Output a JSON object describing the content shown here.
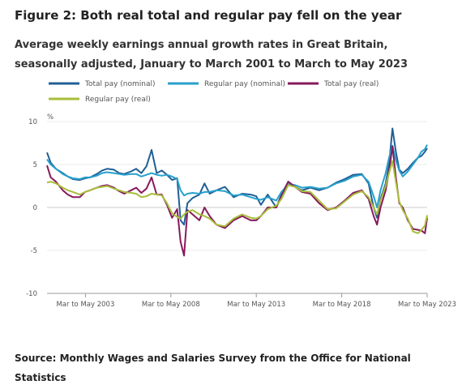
{
  "figure": {
    "title": "Figure 2: Both real total and regular pay fell on the year",
    "subtitle": "Average weekly earnings annual growth rates in Great Britain, seasonally adjusted, January to March 2001 to March to May 2023",
    "source": "Source: Monthly Wages and Salaries Survey from the Office for National Statistics"
  },
  "chart_data": {
    "type": "line",
    "title": "Figure 2: Both real total and regular pay fell on the year",
    "subtitle": "Average weekly earnings annual growth rates in Great Britain, seasonally adjusted, January to March 2001 to March to May 2023",
    "ylabel": "%",
    "ylim": [
      -10,
      10
    ],
    "yticks": [
      10,
      5,
      0,
      -5,
      -10
    ],
    "xlim": [
      2001.08,
      2023.33
    ],
    "xticks": [
      {
        "x": 2003.33,
        "label": "Mar to May 2003"
      },
      {
        "x": 2008.33,
        "label": "Mar to May 2008"
      },
      {
        "x": 2013.33,
        "label": "Mar to May 2013"
      },
      {
        "x": 2018.33,
        "label": "Mar to May 2018"
      },
      {
        "x": 2023.33,
        "label": "Mar to May 2023"
      }
    ],
    "grid": "horizontal",
    "legend": "top",
    "series": [
      {
        "name": "Total pay (nominal)",
        "color": "#206095",
        "points": [
          [
            2001.08,
            6.4
          ],
          [
            2001.3,
            5.2
          ],
          [
            2001.6,
            4.5
          ],
          [
            2002.0,
            4.0
          ],
          [
            2002.3,
            3.6
          ],
          [
            2002.6,
            3.3
          ],
          [
            2003.0,
            3.2
          ],
          [
            2003.3,
            3.4
          ],
          [
            2003.6,
            3.5
          ],
          [
            2004.0,
            3.9
          ],
          [
            2004.3,
            4.3
          ],
          [
            2004.6,
            4.5
          ],
          [
            2005.0,
            4.4
          ],
          [
            2005.3,
            4.0
          ],
          [
            2005.6,
            3.9
          ],
          [
            2006.0,
            4.2
          ],
          [
            2006.3,
            4.5
          ],
          [
            2006.6,
            4.0
          ],
          [
            2006.9,
            4.8
          ],
          [
            2007.2,
            6.7
          ],
          [
            2007.5,
            4.0
          ],
          [
            2007.8,
            4.3
          ],
          [
            2008.1,
            3.8
          ],
          [
            2008.4,
            3.2
          ],
          [
            2008.7,
            3.4
          ],
          [
            2008.9,
            -1.5
          ],
          [
            2009.1,
            -2.0
          ],
          [
            2009.3,
            0.5
          ],
          [
            2009.6,
            1.1
          ],
          [
            2010.0,
            1.5
          ],
          [
            2010.3,
            2.8
          ],
          [
            2010.6,
            1.6
          ],
          [
            2011.0,
            2.0
          ],
          [
            2011.5,
            2.4
          ],
          [
            2012.0,
            1.2
          ],
          [
            2012.5,
            1.6
          ],
          [
            2013.0,
            1.5
          ],
          [
            2013.33,
            1.3
          ],
          [
            2013.6,
            0.3
          ],
          [
            2014.0,
            1.5
          ],
          [
            2014.5,
            0.0
          ],
          [
            2014.8,
            1.5
          ],
          [
            2015.2,
            3.0
          ],
          [
            2015.6,
            2.4
          ],
          [
            2016.0,
            2.0
          ],
          [
            2016.5,
            2.3
          ],
          [
            2017.0,
            2.0
          ],
          [
            2017.5,
            2.3
          ],
          [
            2018.0,
            2.9
          ],
          [
            2018.5,
            3.3
          ],
          [
            2019.0,
            3.8
          ],
          [
            2019.5,
            3.9
          ],
          [
            2019.9,
            2.8
          ],
          [
            2020.2,
            0.0
          ],
          [
            2020.4,
            -1.2
          ],
          [
            2020.6,
            1.0
          ],
          [
            2020.9,
            2.8
          ],
          [
            2021.1,
            5.0
          ],
          [
            2021.3,
            9.2
          ],
          [
            2021.5,
            6.5
          ],
          [
            2021.7,
            4.4
          ],
          [
            2021.9,
            4.0
          ],
          [
            2022.2,
            4.5
          ],
          [
            2022.5,
            5.2
          ],
          [
            2022.8,
            5.8
          ],
          [
            2023.0,
            6.0
          ],
          [
            2023.2,
            6.5
          ],
          [
            2023.33,
            6.9
          ]
        ]
      },
      {
        "name": "Regular pay (nominal)",
        "color": "#27a0cc",
        "points": [
          [
            2001.08,
            5.6
          ],
          [
            2001.3,
            5.0
          ],
          [
            2001.6,
            4.5
          ],
          [
            2002.0,
            3.9
          ],
          [
            2002.3,
            3.6
          ],
          [
            2002.6,
            3.4
          ],
          [
            2003.0,
            3.3
          ],
          [
            2003.3,
            3.5
          ],
          [
            2003.6,
            3.5
          ],
          [
            2004.0,
            3.7
          ],
          [
            2004.3,
            4.0
          ],
          [
            2004.6,
            4.1
          ],
          [
            2005.0,
            4.0
          ],
          [
            2005.3,
            3.9
          ],
          [
            2005.6,
            3.8
          ],
          [
            2006.0,
            3.9
          ],
          [
            2006.3,
            3.9
          ],
          [
            2006.6,
            3.6
          ],
          [
            2006.9,
            3.8
          ],
          [
            2007.2,
            4.0
          ],
          [
            2007.5,
            3.8
          ],
          [
            2007.8,
            3.7
          ],
          [
            2008.1,
            3.8
          ],
          [
            2008.4,
            3.6
          ],
          [
            2008.7,
            3.3
          ],
          [
            2008.9,
            2.0
          ],
          [
            2009.1,
            1.4
          ],
          [
            2009.3,
            1.6
          ],
          [
            2009.6,
            1.7
          ],
          [
            2010.0,
            1.6
          ],
          [
            2010.3,
            1.8
          ],
          [
            2010.6,
            1.8
          ],
          [
            2011.0,
            2.0
          ],
          [
            2011.5,
            1.9
          ],
          [
            2012.0,
            1.4
          ],
          [
            2012.5,
            1.5
          ],
          [
            2013.0,
            1.2
          ],
          [
            2013.33,
            1.0
          ],
          [
            2013.6,
            0.9
          ],
          [
            2014.0,
            1.2
          ],
          [
            2014.5,
            0.8
          ],
          [
            2014.8,
            1.8
          ],
          [
            2015.2,
            2.7
          ],
          [
            2015.6,
            2.6
          ],
          [
            2016.0,
            2.3
          ],
          [
            2016.5,
            2.4
          ],
          [
            2017.0,
            2.2
          ],
          [
            2017.5,
            2.3
          ],
          [
            2018.0,
            2.8
          ],
          [
            2018.5,
            3.1
          ],
          [
            2019.0,
            3.6
          ],
          [
            2019.5,
            3.8
          ],
          [
            2019.9,
            3.0
          ],
          [
            2020.2,
            1.3
          ],
          [
            2020.4,
            0.0
          ],
          [
            2020.6,
            2.0
          ],
          [
            2020.9,
            4.0
          ],
          [
            2021.1,
            5.8
          ],
          [
            2021.3,
            7.2
          ],
          [
            2021.5,
            5.5
          ],
          [
            2021.7,
            4.3
          ],
          [
            2021.9,
            3.6
          ],
          [
            2022.2,
            4.2
          ],
          [
            2022.5,
            5.0
          ],
          [
            2022.8,
            5.8
          ],
          [
            2023.0,
            6.5
          ],
          [
            2023.2,
            6.8
          ],
          [
            2023.33,
            7.3
          ]
        ]
      },
      {
        "name": "Total pay (real)",
        "color": "#871a5b",
        "points": [
          [
            2001.08,
            4.9
          ],
          [
            2001.3,
            3.5
          ],
          [
            2001.6,
            3.0
          ],
          [
            2002.0,
            2.0
          ],
          [
            2002.3,
            1.5
          ],
          [
            2002.6,
            1.2
          ],
          [
            2003.0,
            1.2
          ],
          [
            2003.3,
            1.8
          ],
          [
            2003.6,
            2.0
          ],
          [
            2004.0,
            2.3
          ],
          [
            2004.3,
            2.5
          ],
          [
            2004.6,
            2.6
          ],
          [
            2005.0,
            2.3
          ],
          [
            2005.3,
            1.9
          ],
          [
            2005.6,
            1.6
          ],
          [
            2006.0,
            2.0
          ],
          [
            2006.3,
            2.3
          ],
          [
            2006.6,
            1.7
          ],
          [
            2006.9,
            2.2
          ],
          [
            2007.2,
            3.5
          ],
          [
            2007.5,
            1.5
          ],
          [
            2007.8,
            1.5
          ],
          [
            2008.1,
            0.3
          ],
          [
            2008.4,
            -1.2
          ],
          [
            2008.7,
            -0.2
          ],
          [
            2008.9,
            -4.0
          ],
          [
            2009.1,
            -5.6
          ],
          [
            2009.3,
            -0.3
          ],
          [
            2009.6,
            -0.8
          ],
          [
            2010.0,
            -1.5
          ],
          [
            2010.3,
            0.0
          ],
          [
            2010.6,
            -1.0
          ],
          [
            2011.0,
            -2.0
          ],
          [
            2011.5,
            -2.4
          ],
          [
            2012.0,
            -1.5
          ],
          [
            2012.5,
            -1.0
          ],
          [
            2013.0,
            -1.5
          ],
          [
            2013.33,
            -1.5
          ],
          [
            2013.6,
            -1.0
          ],
          [
            2014.0,
            0.0
          ],
          [
            2014.5,
            0.0
          ],
          [
            2014.8,
            1.3
          ],
          [
            2015.2,
            3.0
          ],
          [
            2015.6,
            2.4
          ],
          [
            2016.0,
            1.8
          ],
          [
            2016.5,
            1.6
          ],
          [
            2017.0,
            0.5
          ],
          [
            2017.5,
            -0.3
          ],
          [
            2018.0,
            0.0
          ],
          [
            2018.5,
            0.8
          ],
          [
            2019.0,
            1.7
          ],
          [
            2019.5,
            2.0
          ],
          [
            2019.9,
            1.0
          ],
          [
            2020.2,
            -1.0
          ],
          [
            2020.4,
            -2.0
          ],
          [
            2020.6,
            0.0
          ],
          [
            2020.9,
            2.0
          ],
          [
            2021.1,
            4.2
          ],
          [
            2021.3,
            7.1
          ],
          [
            2021.5,
            3.5
          ],
          [
            2021.7,
            0.5
          ],
          [
            2021.9,
            0.0
          ],
          [
            2022.2,
            -1.5
          ],
          [
            2022.5,
            -2.5
          ],
          [
            2022.8,
            -2.6
          ],
          [
            2023.0,
            -2.7
          ],
          [
            2023.2,
            -3.0
          ],
          [
            2023.33,
            -1.2
          ]
        ]
      },
      {
        "name": "Regular pay (real)",
        "color": "#a8bd3a",
        "points": [
          [
            2001.08,
            2.9
          ],
          [
            2001.3,
            3.0
          ],
          [
            2001.6,
            2.8
          ],
          [
            2002.0,
            2.3
          ],
          [
            2002.3,
            2.0
          ],
          [
            2002.6,
            1.8
          ],
          [
            2003.0,
            1.5
          ],
          [
            2003.3,
            1.8
          ],
          [
            2003.6,
            2.0
          ],
          [
            2004.0,
            2.3
          ],
          [
            2004.3,
            2.4
          ],
          [
            2004.6,
            2.5
          ],
          [
            2005.0,
            2.2
          ],
          [
            2005.3,
            2.0
          ],
          [
            2005.6,
            1.8
          ],
          [
            2006.0,
            1.7
          ],
          [
            2006.3,
            1.6
          ],
          [
            2006.6,
            1.2
          ],
          [
            2006.9,
            1.3
          ],
          [
            2007.2,
            1.6
          ],
          [
            2007.5,
            1.5
          ],
          [
            2007.8,
            1.4
          ],
          [
            2008.1,
            0.5
          ],
          [
            2008.4,
            -0.7
          ],
          [
            2008.7,
            -1.1
          ],
          [
            2008.9,
            -1.3
          ],
          [
            2009.1,
            -0.8
          ],
          [
            2009.3,
            -0.5
          ],
          [
            2009.6,
            -0.3
          ],
          [
            2010.0,
            -0.8
          ],
          [
            2010.3,
            -1.0
          ],
          [
            2010.6,
            -1.3
          ],
          [
            2011.0,
            -2.0
          ],
          [
            2011.5,
            -2.2
          ],
          [
            2012.0,
            -1.3
          ],
          [
            2012.5,
            -0.8
          ],
          [
            2013.0,
            -1.2
          ],
          [
            2013.33,
            -1.3
          ],
          [
            2013.6,
            -1.0
          ],
          [
            2014.0,
            -0.2
          ],
          [
            2014.5,
            0.2
          ],
          [
            2014.8,
            1.0
          ],
          [
            2015.2,
            2.6
          ],
          [
            2015.6,
            2.4
          ],
          [
            2016.0,
            1.9
          ],
          [
            2016.5,
            1.8
          ],
          [
            2017.0,
            0.8
          ],
          [
            2017.5,
            -0.2
          ],
          [
            2018.0,
            -0.1
          ],
          [
            2018.5,
            0.7
          ],
          [
            2019.0,
            1.5
          ],
          [
            2019.5,
            1.9
          ],
          [
            2019.9,
            1.2
          ],
          [
            2020.2,
            0.0
          ],
          [
            2020.4,
            -0.8
          ],
          [
            2020.6,
            0.8
          ],
          [
            2020.9,
            2.5
          ],
          [
            2021.1,
            4.0
          ],
          [
            2021.3,
            5.4
          ],
          [
            2021.5,
            3.0
          ],
          [
            2021.7,
            0.7
          ],
          [
            2021.9,
            -0.3
          ],
          [
            2022.2,
            -1.3
          ],
          [
            2022.5,
            -2.8
          ],
          [
            2022.8,
            -3.0
          ],
          [
            2023.0,
            -2.6
          ],
          [
            2023.2,
            -2.1
          ],
          [
            2023.33,
            -0.9
          ]
        ]
      }
    ]
  }
}
